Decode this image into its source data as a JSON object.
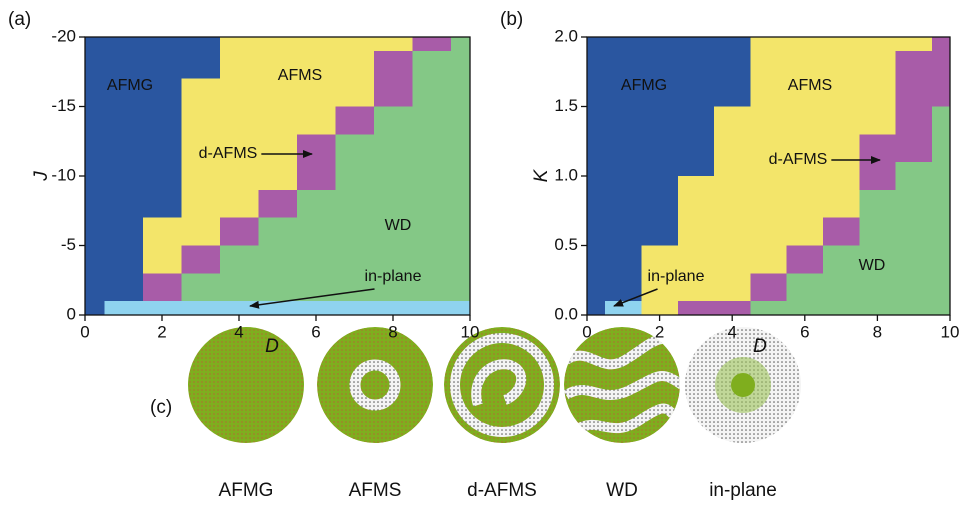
{
  "chart_data": [
    {
      "type": "phase",
      "label": "(a)",
      "xlabel": "D",
      "ylabel": "J",
      "xlim": [
        0,
        10
      ],
      "ylim": [
        0,
        -20
      ],
      "xticks": [
        0,
        2,
        4,
        6,
        8,
        10
      ],
      "yticks": [
        0,
        -5,
        -10,
        -15,
        -20
      ],
      "regions": [
        {
          "name": "WD",
          "color": "#84c886",
          "x": [
            2.5,
            10,
            10,
            9.5,
            9.5,
            8.5,
            8.5,
            7.5,
            7.5,
            6.5,
            6.5,
            5.5,
            5.5,
            4.5,
            4.5,
            3.5,
            3.5,
            2.5
          ],
          "y": [
            -1,
            -1,
            -20,
            -20,
            -19,
            -19,
            -15,
            -15,
            -13,
            -13,
            -9,
            -9,
            -7,
            -7,
            -5,
            -5,
            -3,
            -3
          ]
        },
        {
          "name": "AFMS",
          "color": "#f3e56a",
          "x": [
            1.5,
            1.5,
            2.5,
            2.5,
            3.5,
            3.5,
            8.5,
            8.5,
            7.5,
            7.5,
            6.5,
            6.5,
            5.5,
            5.5,
            4.5,
            4.5,
            3.5,
            3.5,
            2.5,
            2.5
          ],
          "y": [
            -3,
            -7,
            -7,
            -17,
            -17,
            -20,
            -20,
            -19,
            -19,
            -15,
            -15,
            -13,
            -13,
            -9,
            -9,
            -7,
            -7,
            -5,
            -5,
            -3
          ]
        },
        {
          "name": "d-AFMS",
          "color": "#a85ca8",
          "x": [
            1.5,
            2.5,
            2.5,
            1.5,
            null,
            2.5,
            3.5,
            3.5,
            2.5,
            null,
            3.5,
            4.5,
            4.5,
            3.5,
            null,
            4.5,
            5.5,
            5.5,
            4.5,
            null,
            5.5,
            6.5,
            6.5,
            5.5,
            null,
            6.5,
            7.5,
            7.5,
            6.5,
            null,
            7.5,
            8.5,
            8.5,
            7.5,
            null,
            8.5,
            9.5,
            9.5,
            8.5
          ],
          "y": [
            -1,
            -1,
            -3,
            -3,
            null,
            -3,
            -3,
            -5,
            -5,
            null,
            -5,
            -5,
            -7,
            -7,
            null,
            -7,
            -7,
            -9,
            -9,
            null,
            -9,
            -9,
            -13,
            -13,
            null,
            -13,
            -13,
            -15,
            -15,
            null,
            -15,
            -15,
            -19,
            -19,
            null,
            -19,
            -19,
            -20,
            -20
          ]
        },
        {
          "name": "AFMG",
          "color": "#2a56a0",
          "x": [
            0,
            0.5,
            0.5,
            1.5,
            1.5,
            2.5,
            2.5,
            3.5,
            3.5,
            0
          ],
          "y": [
            0,
            0,
            -1,
            -1,
            -7,
            -7,
            -17,
            -17,
            -20,
            -20
          ]
        },
        {
          "name": "in-plane",
          "color": "#8fd3ef",
          "x": [
            0.5,
            10,
            10,
            0.5
          ],
          "y": [
            0,
            0,
            -1,
            -1
          ]
        }
      ]
    },
    {
      "type": "phase",
      "label": "(b)",
      "xlabel": "D",
      "ylabel": "K",
      "xlim": [
        0,
        10
      ],
      "ylim": [
        0,
        2
      ],
      "xticks": [
        0,
        2,
        4,
        6,
        8,
        10
      ],
      "yticks": [
        {
          "value": 0,
          "label": "0.0"
        },
        {
          "value": 0.5,
          "label": "0.5"
        },
        {
          "value": 1,
          "label": "1.0"
        },
        {
          "value": 1.5,
          "label": "1.5"
        },
        {
          "value": 2,
          "label": "2.0"
        }
      ],
      "regions": [
        {
          "name": "WD",
          "color": "#84c886",
          "x": [
            4.5,
            10,
            10,
            9.5,
            9.5,
            8.5,
            8.5,
            7.5,
            7.5,
            6.5,
            6.5,
            5.5,
            5.5,
            4.5
          ],
          "y": [
            0,
            0,
            1.5,
            1.5,
            1.1,
            1.1,
            0.9,
            0.9,
            0.7,
            0.7,
            0.5,
            0.5,
            0.1,
            0.1
          ]
        },
        {
          "name": "AFMS",
          "color": "#f3e56a",
          "x": [
            1.5,
            2.5,
            2.5,
            4.5,
            4.5,
            5.5,
            5.5,
            6.5,
            6.5,
            7.5,
            7.5,
            8.5,
            8.5,
            9.5,
            9.5,
            4.5,
            4.5,
            3.5,
            3.5,
            2.5,
            2.5,
            1.5
          ],
          "y": [
            0,
            0,
            0.1,
            0.1,
            0.3,
            0.3,
            0.5,
            0.5,
            0.7,
            0.7,
            1.3,
            1.3,
            1.9,
            1.9,
            2,
            2,
            1.5,
            1.5,
            1,
            1,
            0.5,
            0.5
          ]
        },
        {
          "name": "d-AFMS",
          "color": "#a85ca8",
          "x": [
            2.5,
            4.5,
            4.5,
            2.5,
            null,
            4.5,
            5.5,
            5.5,
            4.5,
            null,
            5.5,
            6.5,
            6.5,
            5.5,
            null,
            6.5,
            7.5,
            7.5,
            6.5,
            null,
            7.5,
            8.5,
            8.5,
            7.5,
            null,
            8.5,
            9.5,
            9.5,
            8.5,
            null,
            9.5,
            10,
            10,
            9.5
          ],
          "y": [
            0,
            0,
            0.1,
            0.1,
            null,
            0.1,
            0.1,
            0.3,
            0.3,
            null,
            0.3,
            0.3,
            0.5,
            0.5,
            null,
            0.5,
            0.5,
            0.7,
            0.7,
            null,
            0.9,
            0.9,
            1.3,
            1.3,
            null,
            1.1,
            1.1,
            1.9,
            1.9,
            null,
            1.5,
            1.5,
            2,
            2
          ]
        },
        {
          "name": "AFMG",
          "color": "#2a56a0",
          "x": [
            0,
            0.5,
            0.5,
            1.5,
            1.5,
            2.5,
            2.5,
            3.5,
            3.5,
            4.5,
            4.5,
            0
          ],
          "y": [
            0,
            0,
            0.1,
            0.1,
            0.5,
            0.5,
            1,
            1,
            1.5,
            1.5,
            2,
            2
          ]
        },
        {
          "name": "in-plane",
          "color": "#8fd3ef",
          "x": [
            0.5,
            1.5,
            1.5,
            0.5
          ],
          "y": [
            0,
            0,
            0.1,
            0.1
          ]
        }
      ]
    }
  ],
  "snapshots": {
    "label": "(c)",
    "names": [
      "AFMG",
      "AFMS",
      "d-AFMS",
      "WD",
      "in-plane"
    ]
  }
}
